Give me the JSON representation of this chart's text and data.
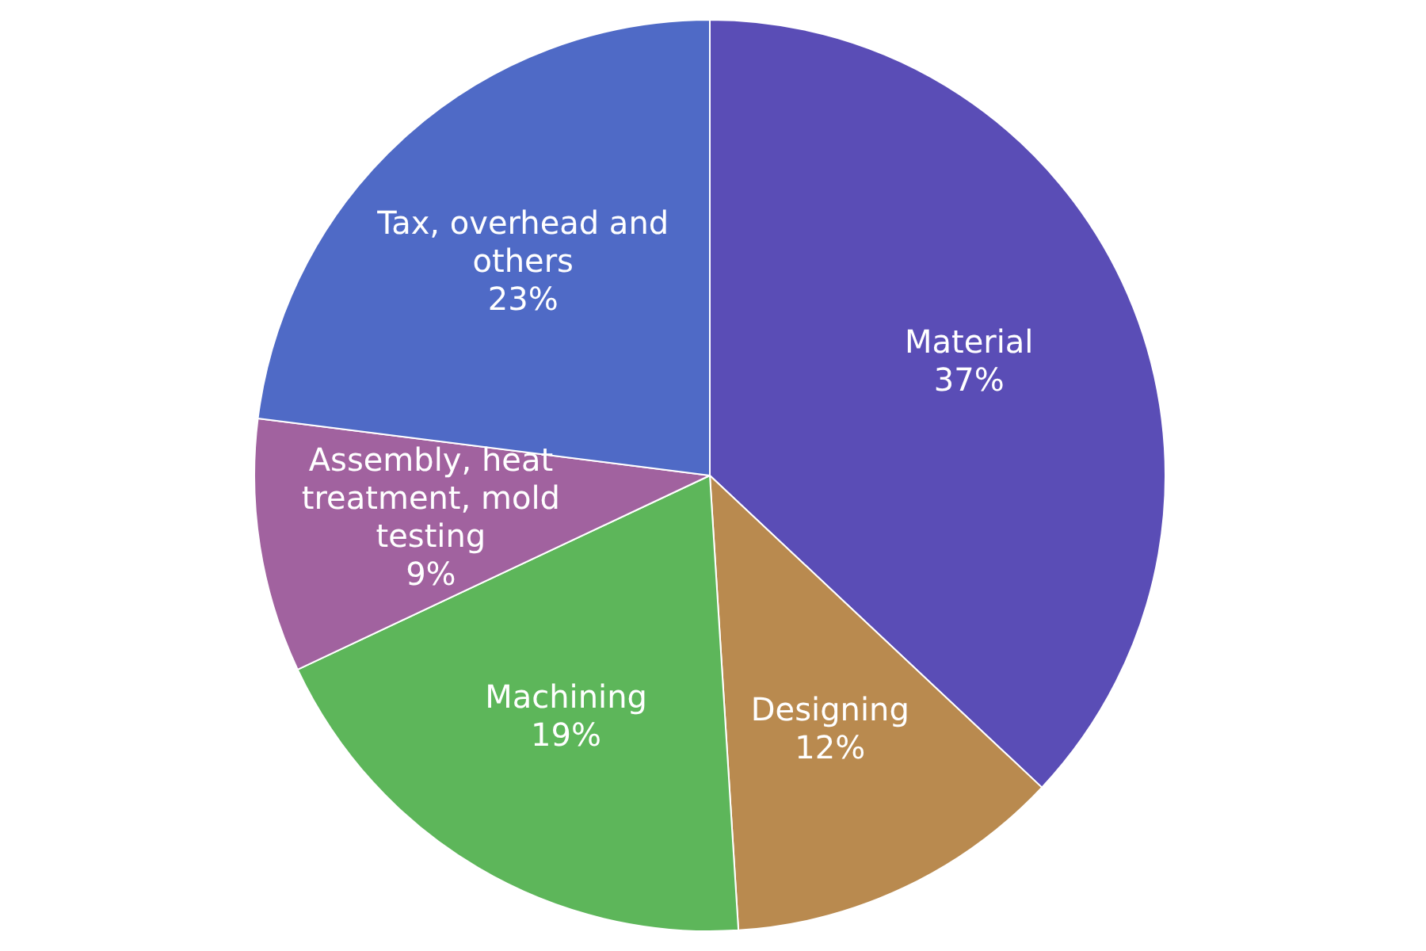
{
  "chart_data": {
    "type": "pie",
    "categories": [
      "Material",
      "Designing",
      "Machining",
      "Assembly, heat treatment, mold testing",
      "Tax, overhead and others"
    ],
    "values": [
      37,
      12,
      19,
      9,
      23
    ],
    "value_labels": [
      "37%",
      "12%",
      "19%",
      "9%",
      "23%"
    ],
    "colors": [
      "#5a4db6",
      "#b98a4f",
      "#5db65a",
      "#a1629f",
      "#4f6ac6"
    ],
    "legend": false
  }
}
